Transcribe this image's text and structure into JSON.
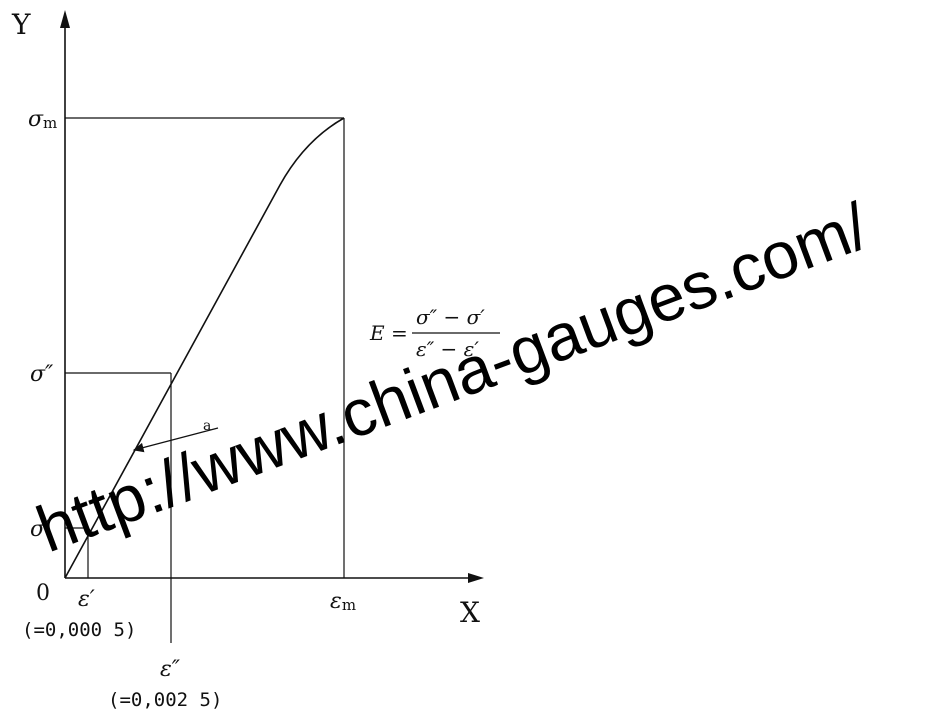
{
  "axes": {
    "y_title": "Y",
    "x_title": "X",
    "origin": "0"
  },
  "y_labels": {
    "sigma_m": "σ",
    "sigma_m_sub": "m",
    "sigma_double_prime": "σ″",
    "sigma_prime": "σ′"
  },
  "x_labels": {
    "eps_prime": "ε′",
    "eps_prime_value": "(=0,000 5)",
    "eps_double_prime": "ε″",
    "eps_double_prime_value": "(=0,002 5)",
    "eps_m": "ε",
    "eps_m_sub": "m"
  },
  "annotation": {
    "marker": "a"
  },
  "formula": {
    "lhs": "E =",
    "numerator": "σ″ − σ′",
    "denominator": "ε″ − ε′"
  },
  "watermark": "http://www.china-gauges.com/"
}
